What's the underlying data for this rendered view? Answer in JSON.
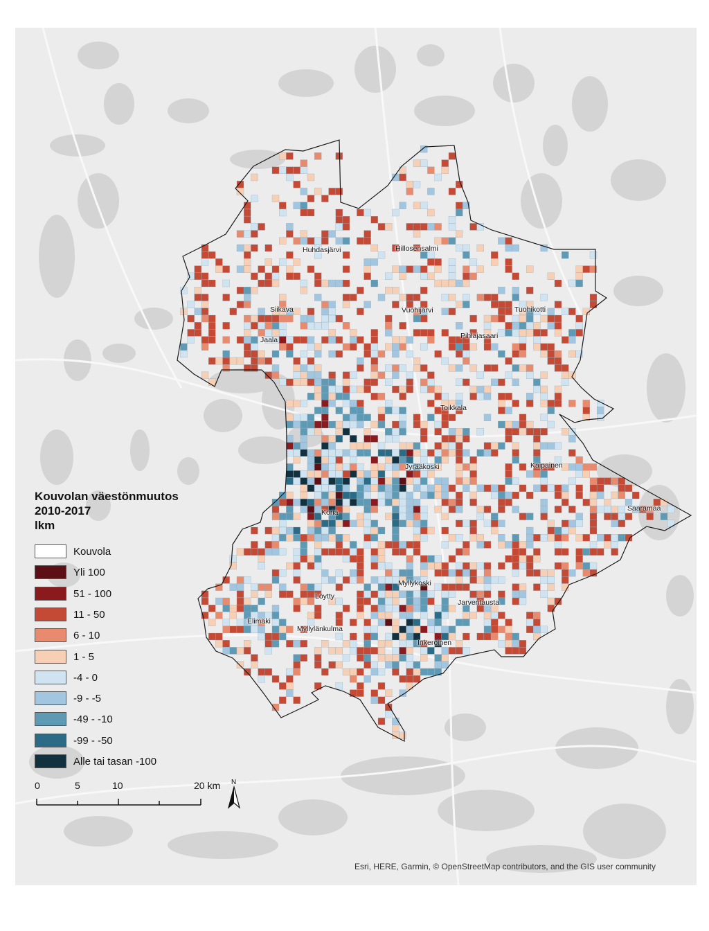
{
  "map": {
    "region": "Kouvola",
    "basemap_colors": {
      "land": "#ececec",
      "water": "#d4d4d4",
      "roads": "#f8f8f8",
      "urban": "#dadada"
    },
    "boundary_color": "#1a1a1a",
    "places": [
      {
        "name": "Huhdasjärvi"
      },
      {
        "name": "Hillosensalmi"
      },
      {
        "name": "Siikava"
      },
      {
        "name": "Vuohijärvi"
      },
      {
        "name": "Tuohikotti"
      },
      {
        "name": "Jaala"
      },
      {
        "name": "Pihlajasaari"
      },
      {
        "name": "Toikkala"
      },
      {
        "name": "Jyrääkoski"
      },
      {
        "name": "Kaipainen"
      },
      {
        "name": "Saaramaa"
      },
      {
        "name": "Koria"
      },
      {
        "name": "Myllykoski"
      },
      {
        "name": "Löytty"
      },
      {
        "name": "Jarventausta"
      },
      {
        "name": "Elimäki"
      },
      {
        "name": "Myllylänkulma"
      },
      {
        "name": "Inkeroinen"
      }
    ]
  },
  "legend": {
    "title_line1": "Kouvolan väestönmuutos",
    "title_line2": "2010-2017",
    "title_line3": "lkm",
    "items": [
      {
        "label": "Kouvola",
        "color": "#ffffff"
      },
      {
        "label": "Yli 100",
        "color": "#5c0f14"
      },
      {
        "label": "51 - 100",
        "color": "#8b1a1e"
      },
      {
        "label": "11 - 50",
        "color": "#c44a35"
      },
      {
        "label": "6 - 10",
        "color": "#e88a6e"
      },
      {
        "label": "1 - 5",
        "color": "#f6cfb4"
      },
      {
        "label": "-4 - 0",
        "color": "#cfe3f0"
      },
      {
        "label": "-9 - -5",
        "color": "#a2c6df"
      },
      {
        "label": "-49 - -10",
        "color": "#5f9ab5"
      },
      {
        "label": "-99 - -50",
        "color": "#2c6b85"
      },
      {
        "label": "Alle tai tasan -100",
        "color": "#12303d"
      }
    ]
  },
  "scale": {
    "ticks": [
      "0",
      "5",
      "10",
      "20 km"
    ]
  },
  "north_label": "N",
  "attribution": "Esri, HERE, Garmin, © OpenStreetMap contributors, and the GIS user community"
}
